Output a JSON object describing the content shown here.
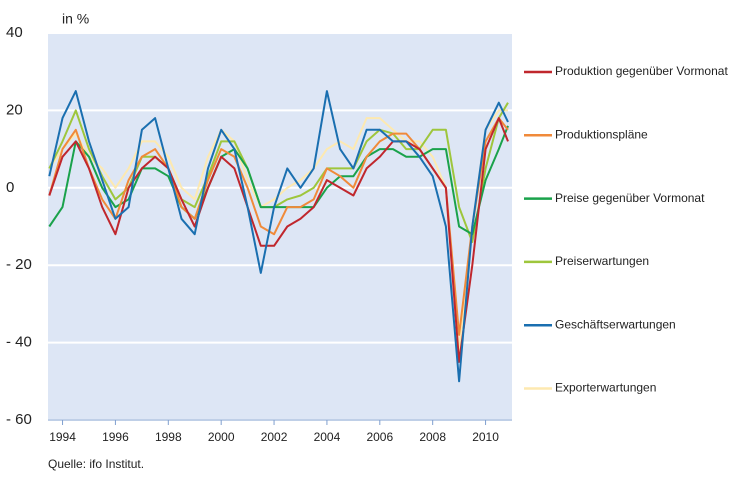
{
  "chart_data": {
    "type": "line",
    "y_label": "in %",
    "source": "Quelle: ifo Institut.",
    "x": [
      1993.5,
      1994,
      1994.5,
      1995,
      1995.5,
      1996,
      1996.5,
      1997,
      1997.5,
      1998,
      1998.5,
      1999,
      1999.5,
      2000,
      2000.5,
      2001,
      2001.5,
      2002,
      2002.5,
      2003,
      2003.5,
      2004,
      2004.5,
      2005,
      2005.5,
      2006,
      2006.5,
      2007,
      2007.5,
      2008,
      2008.5,
      2009,
      2009.5,
      2010,
      2010.5,
      2010.85
    ],
    "series": [
      {
        "name": "Produktion gegenüber Vormonat",
        "color": "#c0272d",
        "values": [
          -2,
          8,
          12,
          5,
          -5,
          -12,
          0,
          5,
          8,
          5,
          -3,
          -10,
          0,
          8,
          5,
          -5,
          -15,
          -15,
          -10,
          -8,
          -5,
          2,
          0,
          -2,
          5,
          8,
          12,
          12,
          10,
          5,
          0,
          -45,
          -20,
          10,
          18,
          12
        ]
      },
      {
        "name": "Produktionspläne",
        "color": "#f08a3a",
        "values": [
          -2,
          10,
          15,
          5,
          -3,
          -8,
          2,
          8,
          10,
          5,
          -5,
          -8,
          2,
          10,
          8,
          0,
          -10,
          -12,
          -5,
          -5,
          -3,
          5,
          3,
          0,
          8,
          12,
          14,
          14,
          10,
          5,
          0,
          -38,
          -10,
          12,
          18,
          15
        ]
      },
      {
        "name": "Preise gegenüber Vormonat",
        "color": "#1aa24b",
        "values": [
          -10,
          -5,
          12,
          8,
          0,
          -5,
          -3,
          5,
          5,
          3,
          -5,
          -8,
          0,
          8,
          10,
          5,
          -5,
          -5,
          -5,
          -5,
          -5,
          0,
          3,
          3,
          8,
          10,
          10,
          8,
          8,
          10,
          10,
          -10,
          -12,
          2,
          10,
          16
        ]
      },
      {
        "name": "Preiserwartungen",
        "color": "#9ec63c",
        "values": [
          5,
          12,
          20,
          10,
          3,
          -3,
          0,
          8,
          8,
          5,
          -3,
          -5,
          3,
          12,
          12,
          5,
          -5,
          -5,
          -3,
          -2,
          0,
          5,
          5,
          5,
          12,
          15,
          14,
          10,
          10,
          15,
          15,
          -5,
          -14,
          5,
          18,
          22
        ]
      },
      {
        "name": "Geschäftserwartungen",
        "color": "#1a6fb0",
        "values": [
          3,
          18,
          25,
          12,
          2,
          -8,
          -5,
          15,
          18,
          5,
          -8,
          -12,
          5,
          15,
          10,
          -5,
          -22,
          -5,
          5,
          0,
          5,
          25,
          10,
          5,
          15,
          15,
          12,
          12,
          8,
          3,
          -10,
          -50,
          -10,
          15,
          22,
          17
        ]
      },
      {
        "name": "Exporterwartungen",
        "color": "#fde9b0",
        "values": [
          5,
          10,
          14,
          8,
          5,
          0,
          5,
          12,
          12,
          8,
          0,
          -3,
          8,
          15,
          12,
          2,
          -5,
          -3,
          0,
          2,
          5,
          10,
          12,
          10,
          18,
          18,
          15,
          12,
          12,
          8,
          0,
          -42,
          -10,
          15,
          20,
          20
        ]
      }
    ],
    "xlim": [
      1993.45,
      2011
    ],
    "xticks": [
      1994,
      1996,
      1998,
      2000,
      2002,
      2004,
      2006,
      2008,
      2010
    ],
    "ylim": [
      -60,
      40
    ],
    "yticks": [
      {
        "value": -60,
        "label": "- 60"
      },
      {
        "value": -40,
        "label": "- 40"
      },
      {
        "value": -20,
        "label": "- 20"
      },
      0,
      20,
      40
    ],
    "grid": true
  }
}
